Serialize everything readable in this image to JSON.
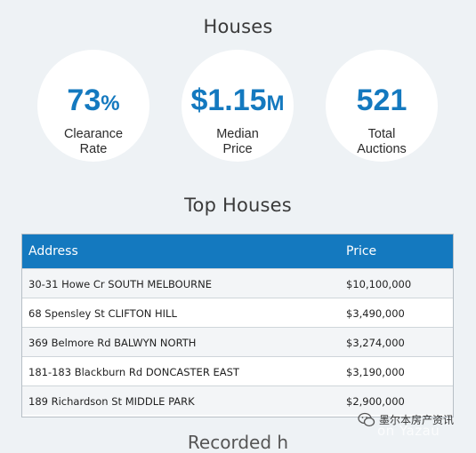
{
  "houses": {
    "title": "Houses",
    "stats": [
      {
        "value": "73",
        "unit": "%",
        "label_line1": "Clearance",
        "label_line2": "Rate"
      },
      {
        "value": "$1.15",
        "unit": "M",
        "label_line1": "Median",
        "label_line2": "Price"
      },
      {
        "value": "521",
        "unit": "",
        "label_line1": "Total",
        "label_line2": "Auctions"
      }
    ]
  },
  "top_houses": {
    "title": "Top Houses",
    "columns": {
      "address": "Address",
      "price": "Price"
    },
    "rows": [
      {
        "address": "30-31 Howe Cr SOUTH MELBOURNE",
        "price": "$10,100,000"
      },
      {
        "address": "68 Spensley St CLIFTON HILL",
        "price": "$3,490,000"
      },
      {
        "address": "369 Belmore Rd BALWYN NORTH",
        "price": "$3,274,000"
      },
      {
        "address": "181-183 Blackburn Rd DONCASTER EAST",
        "price": "$3,190,000"
      },
      {
        "address": "189 Richardson St MIDDLE PARK",
        "price": "$2,900,000"
      }
    ]
  },
  "footer_peek": "Recorded h",
  "watermark": {
    "text": "墨尔本房产资讯",
    "shadow_text": "on Yazau"
  },
  "colors": {
    "accent": "#1479bf",
    "background": "#eef2f5"
  }
}
